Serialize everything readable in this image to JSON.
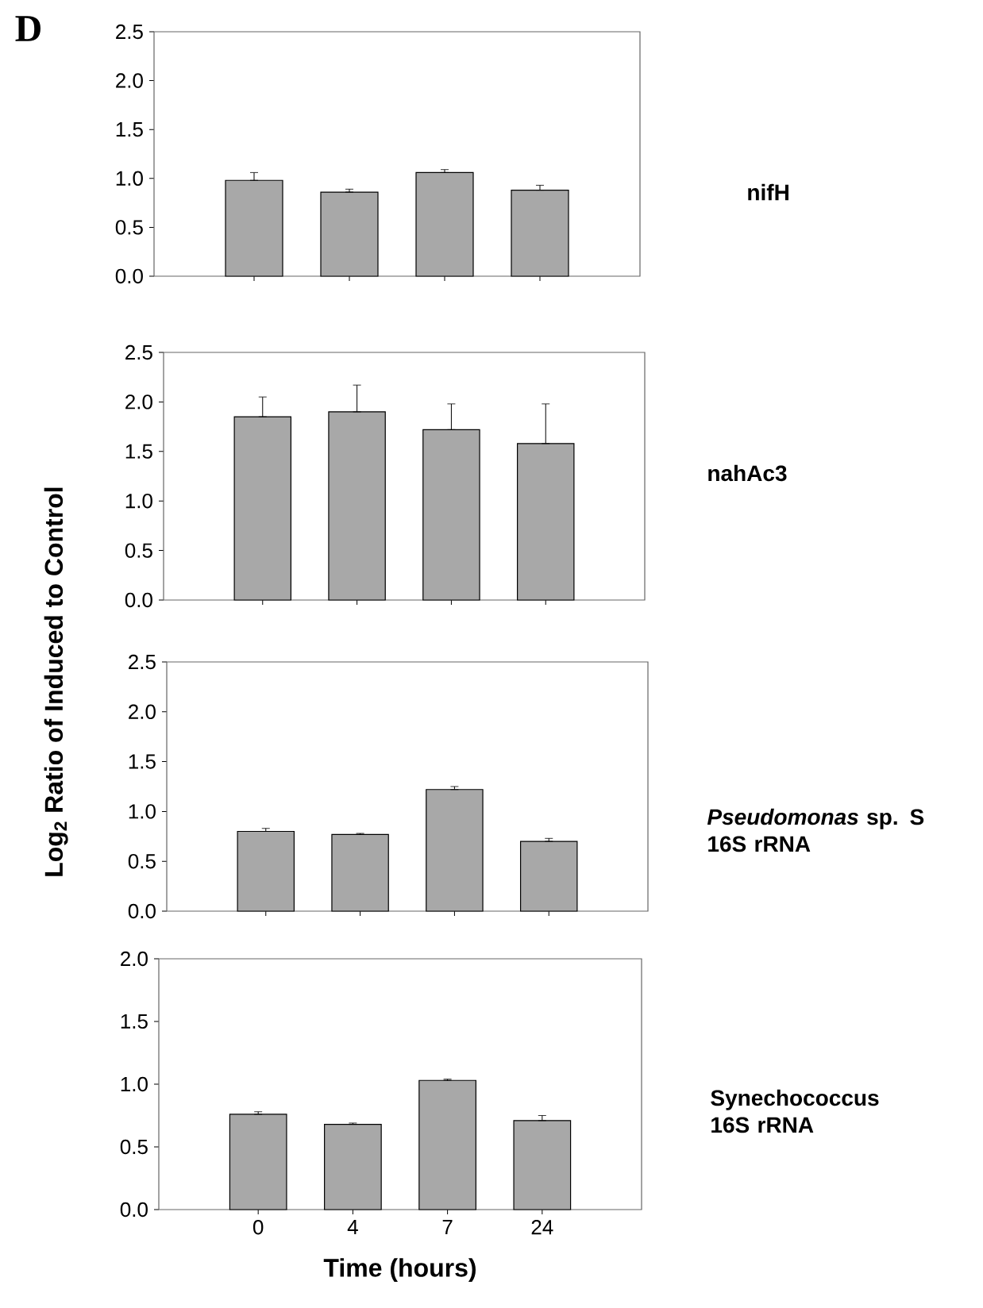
{
  "chart_data": [
    {
      "type": "bar",
      "annotations": [
        "D"
      ],
      "categories": [
        "0",
        "4",
        "7",
        "24"
      ],
      "series": [
        {
          "name": "nifH",
          "color": "#a8a8a8",
          "values": [
            0.98,
            0.86,
            1.06,
            0.88
          ],
          "errors": [
            [
              0.98,
              1.06
            ],
            [
              0.86,
              0.89
            ],
            [
              1.06,
              1.09
            ],
            [
              0.88,
              0.93
            ]
          ]
        }
      ],
      "ylim": [
        0,
        2.5
      ],
      "yticks": [
        {
          "value": 0,
          "label": "0.0"
        },
        {
          "value": 0.5,
          "label": "0.5"
        },
        {
          "value": 1,
          "label": "1.0"
        },
        {
          "value": 1.5,
          "label": "1.5"
        },
        {
          "value": 2,
          "label": "2.0"
        },
        {
          "value": 2.5,
          "label": "2.5"
        }
      ],
      "tick_labels": "y"
    },
    {
      "type": "bar",
      "categories": [
        "0",
        "4",
        "7",
        "24"
      ],
      "series": [
        {
          "name": "nahAc3",
          "color": "#a8a8a8",
          "values": [
            1.85,
            1.9,
            1.72,
            1.58
          ],
          "errors": [
            [
              1.85,
              2.05
            ],
            [
              1.9,
              2.17
            ],
            [
              1.72,
              1.98
            ],
            [
              1.58,
              1.98
            ]
          ]
        }
      ],
      "ylim": [
        0,
        2.5
      ],
      "yticks": [
        {
          "value": 0,
          "label": "0.0"
        },
        {
          "value": 0.5,
          "label": "0.5"
        },
        {
          "value": 1,
          "label": "1.0"
        },
        {
          "value": 1.5,
          "label": "1.5"
        },
        {
          "value": 2,
          "label": "2.0"
        },
        {
          "value": 2.5,
          "label": "2.5"
        }
      ],
      "tick_labels": "y"
    },
    {
      "type": "bar",
      "ylabel": "Log$_{2}$ Ratio of Induced to Control",
      "categories": [
        "0",
        "4",
        "7",
        "24"
      ],
      "series": [
        {
          "name": "*Pseudomonas* sp. S 16S rRNA",
          "color": "#a8a8a8",
          "values": [
            0.8,
            0.77,
            1.22,
            0.7
          ],
          "errors": [
            [
              0.8,
              0.83
            ],
            [
              0.77,
              0.78
            ],
            [
              1.22,
              1.25
            ],
            [
              0.7,
              0.73
            ]
          ]
        }
      ],
      "ylim": [
        0,
        2.5
      ],
      "yticks": [
        {
          "value": 0,
          "label": "0.0"
        },
        {
          "value": 0.5,
          "label": "0.5"
        },
        {
          "value": 1,
          "label": "1.0"
        },
        {
          "value": 1.5,
          "label": "1.5"
        },
        {
          "value": 2,
          "label": "2.0"
        },
        {
          "value": 2.5,
          "label": "2.5"
        }
      ],
      "tick_labels": "y"
    },
    {
      "type": "bar",
      "xlabel": "Time (hours)",
      "categories": [
        "0",
        "4",
        "7",
        "24"
      ],
      "series": [
        {
          "name": "Synechococcus 16S rRNA",
          "color": "#a8a8a8",
          "values": [
            0.76,
            0.68,
            1.03,
            0.71
          ],
          "errors": [
            [
              0.76,
              0.78
            ],
            [
              0.68,
              0.69
            ],
            [
              1.03,
              1.04
            ],
            [
              0.71,
              0.75
            ]
          ]
        }
      ],
      "ylim": [
        0,
        2.0
      ],
      "yticks": [
        {
          "value": 0,
          "label": "0.0"
        },
        {
          "value": 0.5,
          "label": "0.5"
        },
        {
          "value": 1,
          "label": "1.0"
        },
        {
          "value": 1.5,
          "label": "1.5"
        },
        {
          "value": 2,
          "label": "2.0"
        }
      ]
    }
  ]
}
